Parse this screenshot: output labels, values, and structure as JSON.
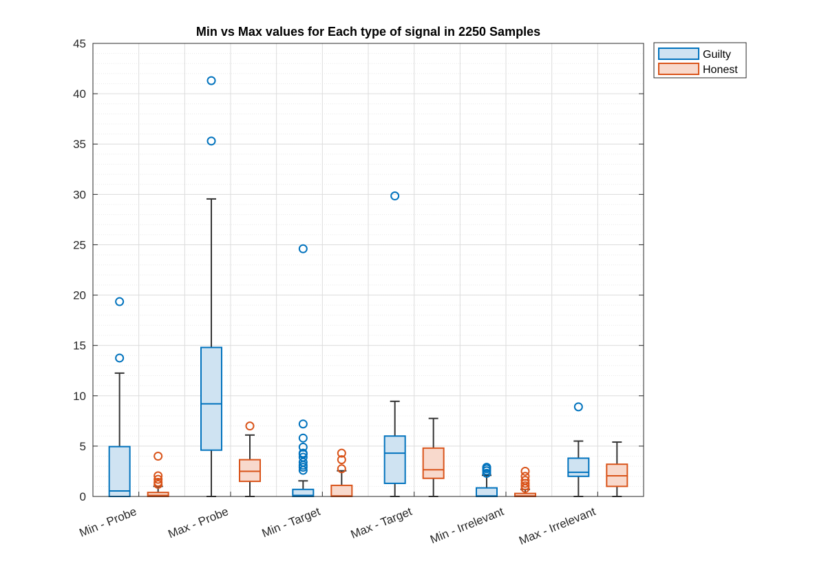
{
  "chart_data": {
    "type": "box",
    "title": "Min vs Max values for Each type of signal in 2250 Samples",
    "xlabel": "",
    "ylabel": "",
    "ylim": [
      0,
      45
    ],
    "yticks": [
      0,
      5,
      10,
      15,
      20,
      25,
      30,
      35,
      40,
      45
    ],
    "grid": true,
    "minor_grid": true,
    "legend_position": "outside-top-right",
    "categories": [
      "Min - Probe",
      "Max - Probe",
      "Min - Target",
      "Max - Target",
      "Min - Irrelevant",
      "Max - Irrelevant"
    ],
    "series": [
      {
        "name": "Guilty",
        "color": "#0072BD",
        "fill": "#cfe3f2",
        "boxes": [
          {
            "whisker_low": 0,
            "q1": 0,
            "median": 0.55,
            "q3": 4.95,
            "whisker_high": 12.25,
            "outliers": [
              13.75,
              19.35
            ]
          },
          {
            "whisker_low": 0,
            "q1": 4.6,
            "median": 9.2,
            "q3": 14.8,
            "whisker_high": 29.55,
            "outliers": [
              35.3,
              41.3
            ]
          },
          {
            "whisker_low": 0,
            "q1": 0,
            "median": 0.1,
            "q3": 0.7,
            "whisker_high": 1.55,
            "outliers": [
              2.6,
              2.9,
              3.1,
              3.4,
              3.9,
              4.2,
              4.3,
              4.9,
              5.8,
              7.2,
              24.6
            ]
          },
          {
            "whisker_low": 0,
            "q1": 1.3,
            "median": 4.3,
            "q3": 6.0,
            "whisker_high": 9.45,
            "outliers": [
              29.85
            ]
          },
          {
            "whisker_low": 0,
            "q1": 0,
            "median": 0.05,
            "q3": 0.85,
            "whisker_high": 2.1,
            "outliers": [
              2.3,
              2.55,
              2.75,
              2.9
            ]
          },
          {
            "whisker_low": 0,
            "q1": 2.0,
            "median": 2.4,
            "q3": 3.8,
            "whisker_high": 5.5,
            "outliers": [
              8.9
            ]
          }
        ]
      },
      {
        "name": "Honest",
        "color": "#D95319",
        "fill": "#f8d9cc",
        "boxes": [
          {
            "whisker_low": 0,
            "q1": 0,
            "median": 0.1,
            "q3": 0.4,
            "whisker_high": 1.0,
            "outliers": [
              1.2,
              1.4,
              1.7,
              2.05,
              4.0
            ]
          },
          {
            "whisker_low": 0,
            "q1": 1.5,
            "median": 2.5,
            "q3": 3.65,
            "whisker_high": 6.1,
            "outliers": [
              7.0
            ]
          },
          {
            "whisker_low": 0,
            "q1": 0,
            "median": 0.05,
            "q3": 1.1,
            "whisker_high": 2.55,
            "outliers": [
              2.75,
              3.65,
              4.3
            ]
          },
          {
            "whisker_low": 0,
            "q1": 1.8,
            "median": 2.65,
            "q3": 4.8,
            "whisker_high": 7.75,
            "outliers": []
          },
          {
            "whisker_low": 0,
            "q1": 0,
            "median": 0.05,
            "q3": 0.3,
            "whisker_high": 0.7,
            "outliers": [
              0.8,
              1.05,
              1.3,
              1.6,
              2.0,
              2.5
            ]
          },
          {
            "whisker_low": 0,
            "q1": 1.0,
            "median": 2.05,
            "q3": 3.2,
            "whisker_high": 5.4,
            "outliers": []
          }
        ]
      }
    ]
  }
}
